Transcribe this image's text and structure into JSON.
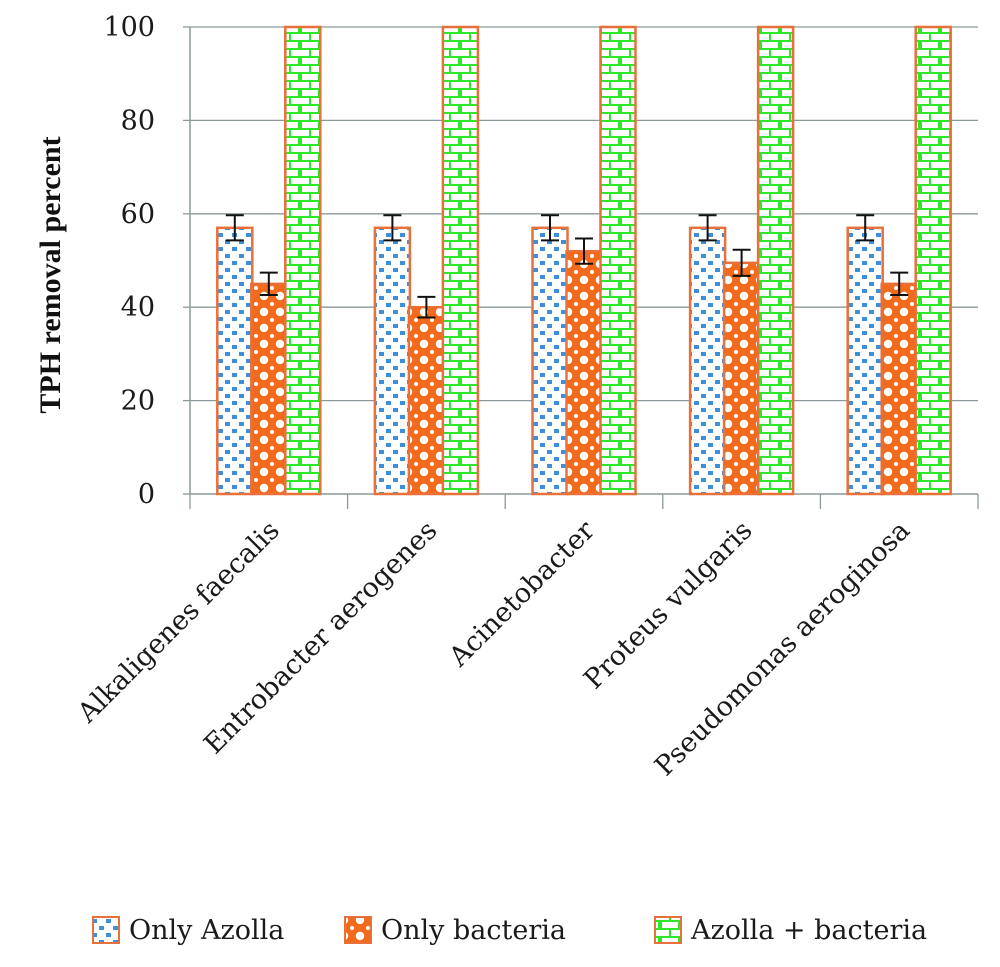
{
  "chart_data": {
    "type": "bar",
    "ylabel": "TPH removal percent",
    "xlabel": "",
    "ylim": [
      0,
      100
    ],
    "yticks": [
      "0",
      "20",
      "40",
      "60",
      "80",
      "100"
    ],
    "grid": true,
    "legend_position": "bottom",
    "categories": [
      "Alkaligenes faecalis",
      "Entrobacter aerogenes",
      "Acinetobacter",
      "Proteus vulgaris",
      "Pseudomonas aeroginosa"
    ],
    "series": [
      {
        "name": "Only Azolla",
        "values": [
          57,
          57,
          57,
          57,
          57
        ],
        "errors": [
          2.7,
          2.7,
          2.7,
          2.7,
          2.7
        ],
        "color": "#3d8fd9",
        "pattern": "dots"
      },
      {
        "name": "Only bacteria",
        "values": [
          45,
          40,
          52,
          49.5,
          45
        ],
        "errors": [
          2.4,
          2.2,
          2.7,
          2.8,
          2.4
        ],
        "color": "#f26a1b",
        "pattern": "circles"
      },
      {
        "name": "Azolla + bacteria",
        "values": [
          100,
          100,
          100,
          100,
          100
        ],
        "errors": [
          0,
          0,
          0,
          0,
          0
        ],
        "color": "#2ee62a",
        "pattern": "bricks"
      }
    ],
    "bar_outline_color": "#e8703a"
  }
}
